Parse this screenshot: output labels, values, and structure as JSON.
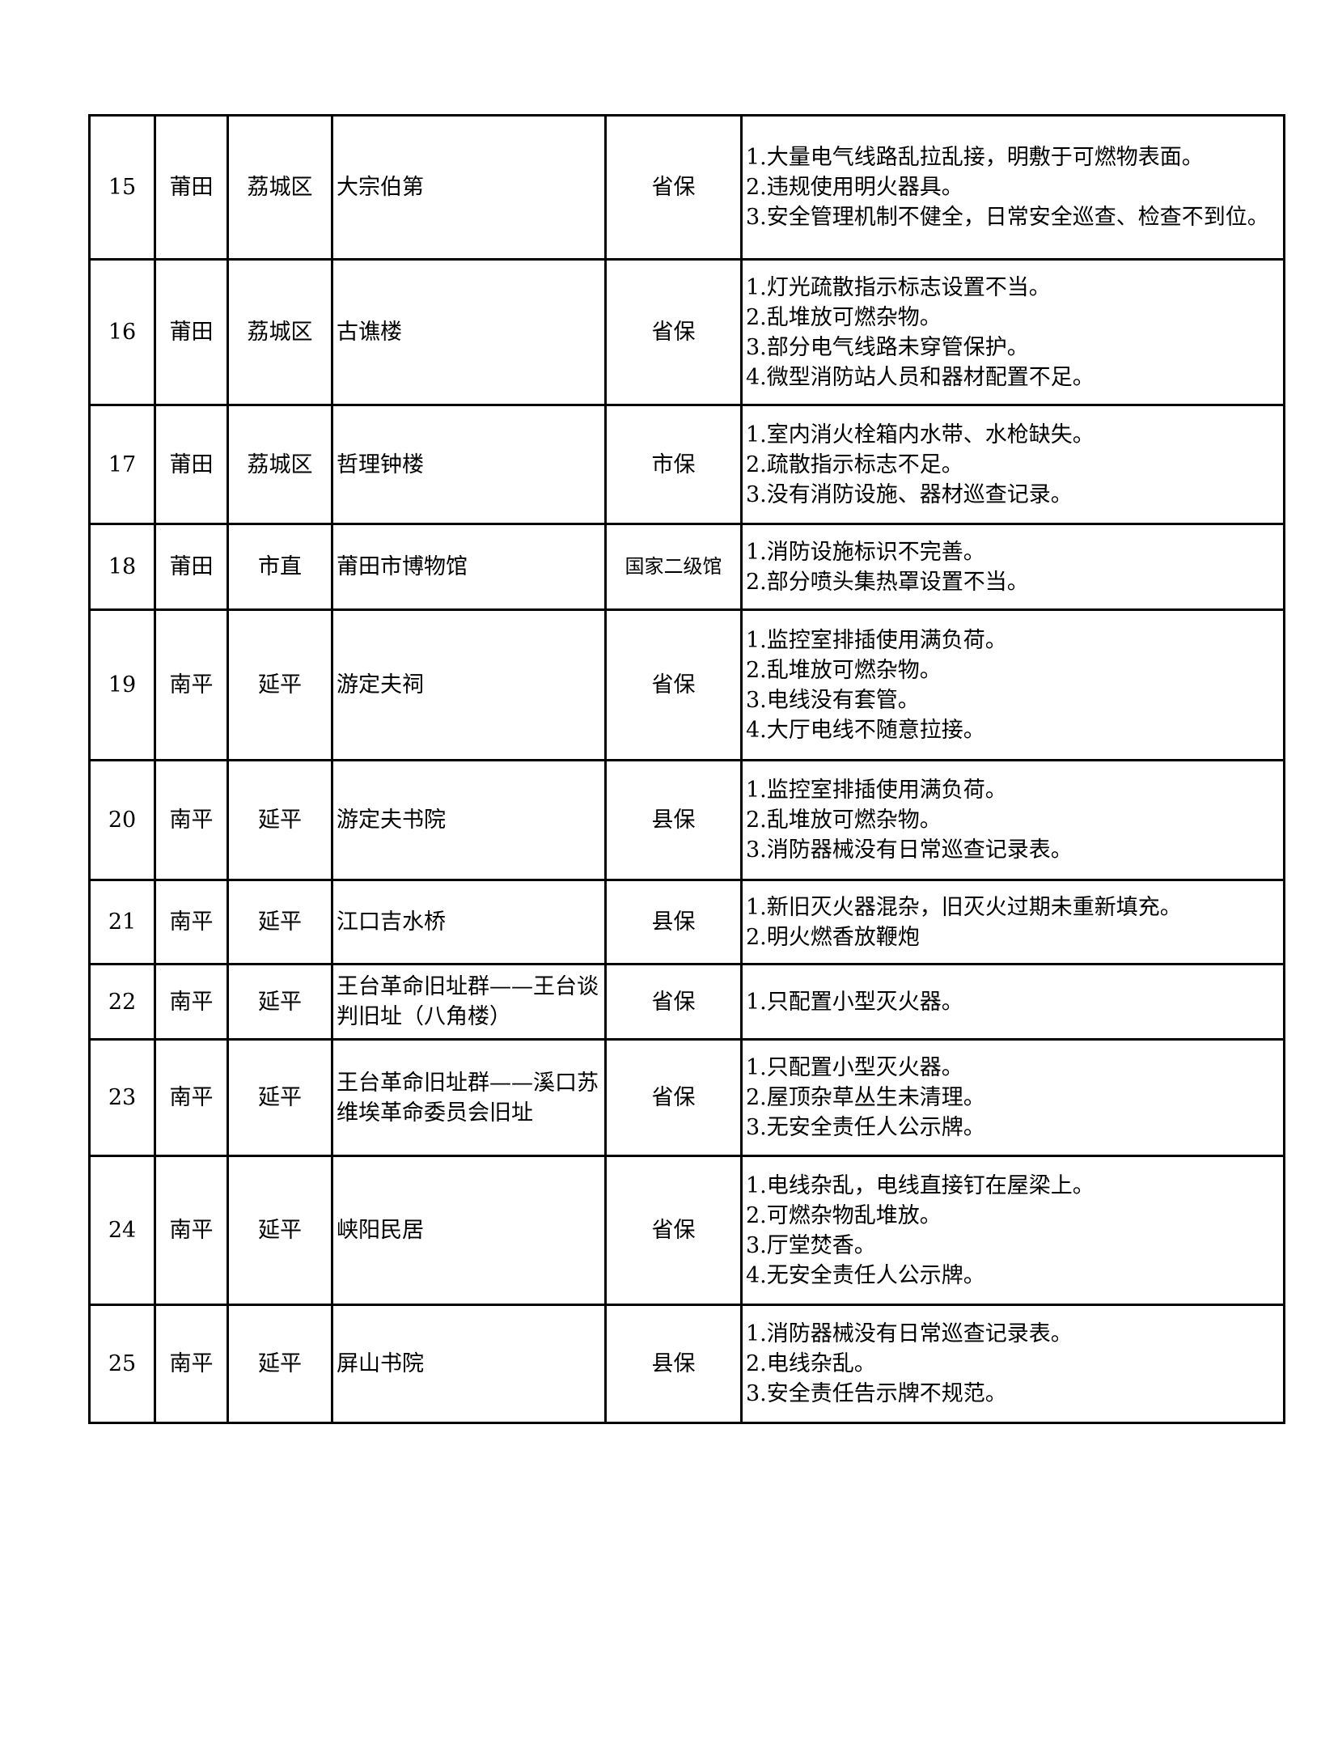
{
  "rows": [
    {
      "no": "15",
      "city": "莆田",
      "district": "荔城区",
      "name": "大宗伯第",
      "level": "省保",
      "issues": [
        "1.大量电气线路乱拉乱接，明敷于可燃物表面。",
        "2.违规使用明火器具。",
        "3.安全管理机制不健全，日常安全巡查、检查不到位。"
      ]
    },
    {
      "no": "16",
      "city": "莆田",
      "district": "荔城区",
      "name": "古谯楼",
      "level": "省保",
      "issues": [
        "1.灯光疏散指示标志设置不当。",
        "2.乱堆放可燃杂物。",
        "3.部分电气线路未穿管保护。",
        "4.微型消防站人员和器材配置不足。"
      ]
    },
    {
      "no": "17",
      "city": "莆田",
      "district": "荔城区",
      "name": "哲理钟楼",
      "level": "市保",
      "issues": [
        "1.室内消火栓箱内水带、水枪缺失。",
        "2.疏散指示标志不足。",
        "3.没有消防设施、器材巡查记录。"
      ]
    },
    {
      "no": "18",
      "city": "莆田",
      "district": "市直",
      "name": "莆田市博物馆",
      "level": "国家二级馆",
      "issues": [
        "1.消防设施标识不完善。",
        "2.部分喷头集热罩设置不当。"
      ]
    },
    {
      "no": "19",
      "city": "南平",
      "district": "延平",
      "name": "游定夫祠",
      "level": "省保",
      "issues": [
        "1.监控室排插使用满负荷。",
        "2.乱堆放可燃杂物。",
        "3.电线没有套管。",
        "4.大厅电线不随意拉接。"
      ]
    },
    {
      "no": "20",
      "city": "南平",
      "district": "延平",
      "name": "游定夫书院",
      "level": "县保",
      "issues": [
        "1.监控室排插使用满负荷。",
        "2.乱堆放可燃杂物。",
        "3.消防器械没有日常巡查记录表。"
      ]
    },
    {
      "no": "21",
      "city": "南平",
      "district": "延平",
      "name": "江口吉水桥",
      "level": "县保",
      "issues": [
        "1.新旧灭火器混杂，旧灭火过期未重新填充。",
        "2.明火燃香放鞭炮"
      ]
    },
    {
      "no": "22",
      "city": "南平",
      "district": "延平",
      "name": "王台革命旧址群——王台谈判旧址（八角楼）",
      "level": "省保",
      "issues": [
        "1.只配置小型灭火器。"
      ]
    },
    {
      "no": "23",
      "city": "南平",
      "district": "延平",
      "name": "王台革命旧址群——溪口苏维埃革命委员会旧址",
      "level": "省保",
      "issues": [
        "1.只配置小型灭火器。",
        "2.屋顶杂草丛生未清理。",
        "3.无安全责任人公示牌。"
      ]
    },
    {
      "no": "24",
      "city": "南平",
      "district": "延平",
      "name": "峡阳民居",
      "level": "省保",
      "issues": [
        "1.电线杂乱，电线直接钉在屋梁上。",
        "2.可燃杂物乱堆放。",
        "3.厅堂焚香。",
        "4.无安全责任人公示牌。"
      ]
    },
    {
      "no": "25",
      "city": "南平",
      "district": "延平",
      "name": "屏山书院",
      "level": "县保",
      "issues": [
        "1.消防器械没有日常巡查记录表。",
        "2.电线杂乱。",
        "3.安全责任告示牌不规范。"
      ]
    }
  ]
}
